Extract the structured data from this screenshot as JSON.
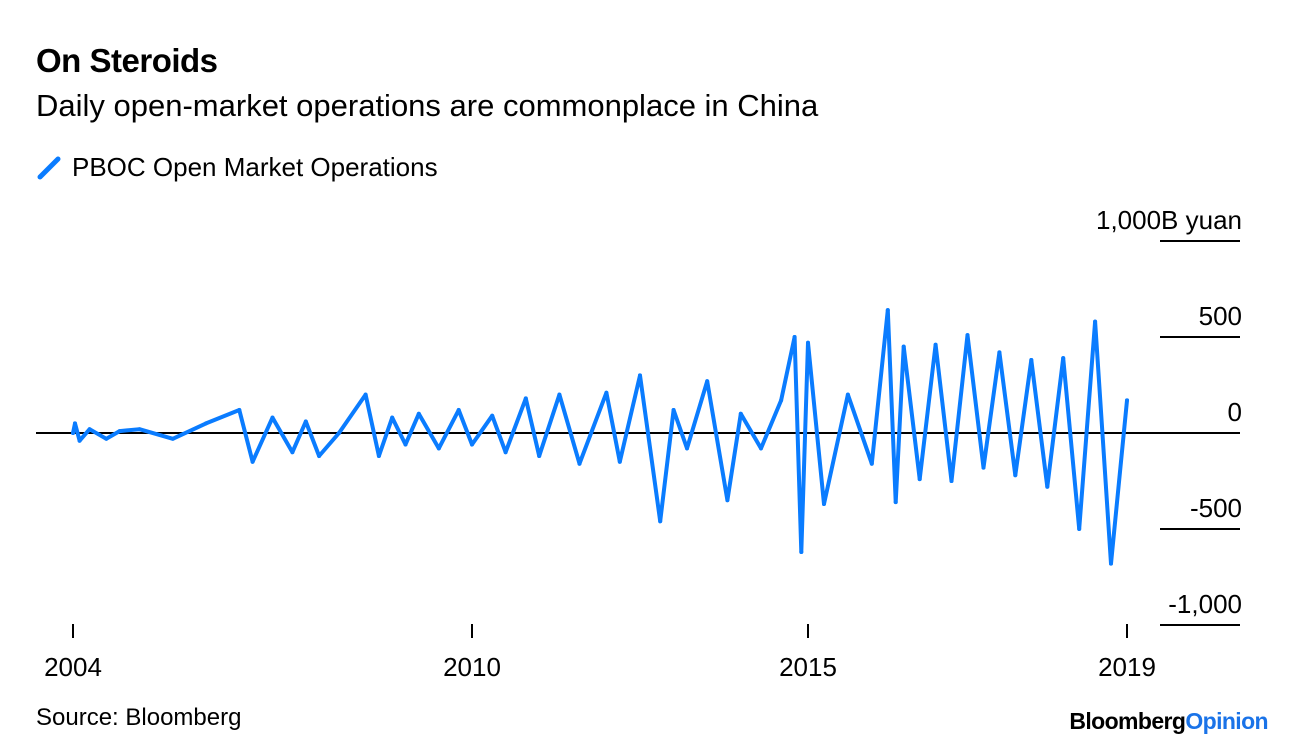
{
  "header": {
    "title": "On Steroids",
    "subtitle": "Daily open-market operations are commonplace in China"
  },
  "footer": {
    "source": "Source: Bloomberg",
    "brand_main": "Bloomberg",
    "brand_accent": "Opinion"
  },
  "colors": {
    "series": "#0a7cff",
    "brand_accent": "#1a73e8",
    "axis": "#000000"
  },
  "chart_data": {
    "type": "line",
    "title": "On Steroids",
    "subtitle": "Daily open-market operations are commonplace in China",
    "xlabel": "",
    "ylabel": "",
    "y_unit": "B yuan",
    "ylim": [
      -1000,
      1000
    ],
    "xlim": [
      2004,
      2020.5
    ],
    "yticks": [
      {
        "value": 1000,
        "label": "1,000B yuan"
      },
      {
        "value": 500,
        "label": "500"
      },
      {
        "value": 0,
        "label": "0"
      },
      {
        "value": -500,
        "label": "-500"
      },
      {
        "value": -1000,
        "label": "-1,000"
      }
    ],
    "xticks": [
      {
        "value": 2004,
        "label": "2004"
      },
      {
        "value": 2010,
        "label": "2010"
      },
      {
        "value": 2015,
        "label": "2015"
      },
      {
        "value": 2019,
        "label": "2019"
      }
    ],
    "grid": false,
    "legend_position": "top-left",
    "series": [
      {
        "name": "PBOC Open Market Operations",
        "x": [
          2004.0,
          2004.03,
          2004.1,
          2004.25,
          2004.5,
          2004.7,
          2005.0,
          2005.5,
          2006.0,
          2006.5,
          2006.7,
          2007.0,
          2007.3,
          2007.5,
          2007.7,
          2008.0,
          2008.4,
          2008.6,
          2008.8,
          2009.0,
          2009.2,
          2009.5,
          2009.8,
          2010.0,
          2010.3,
          2010.5,
          2010.8,
          2011.0,
          2011.3,
          2011.6,
          2012.0,
          2012.2,
          2012.5,
          2012.8,
          2013.0,
          2013.2,
          2013.5,
          2013.8,
          2014.0,
          2014.3,
          2014.6,
          2014.8,
          2014.9,
          2015.0,
          2015.2,
          2015.5,
          2015.8,
          2016.0,
          2016.1,
          2016.2,
          2016.4,
          2016.6,
          2016.8,
          2017.0,
          2017.2,
          2017.4,
          2017.6,
          2017.8,
          2018.0,
          2018.2,
          2018.4,
          2018.6,
          2018.8,
          2019.0
        ],
        "y": [
          0,
          50,
          -40,
          20,
          -30,
          10,
          20,
          -30,
          50,
          120,
          -150,
          80,
          -100,
          60,
          -120,
          0,
          200,
          -120,
          80,
          -60,
          100,
          -80,
          120,
          -60,
          90,
          -100,
          180,
          -120,
          200,
          -160,
          210,
          -150,
          300,
          -460,
          120,
          -80,
          270,
          -350,
          100,
          -80,
          170,
          500,
          -620,
          470,
          -370,
          200,
          -160,
          640,
          -360,
          450,
          -240,
          460,
          -250,
          510,
          -180,
          420,
          -220,
          380,
          -280,
          390,
          -500,
          580,
          -680,
          170
        ]
      }
    ]
  }
}
